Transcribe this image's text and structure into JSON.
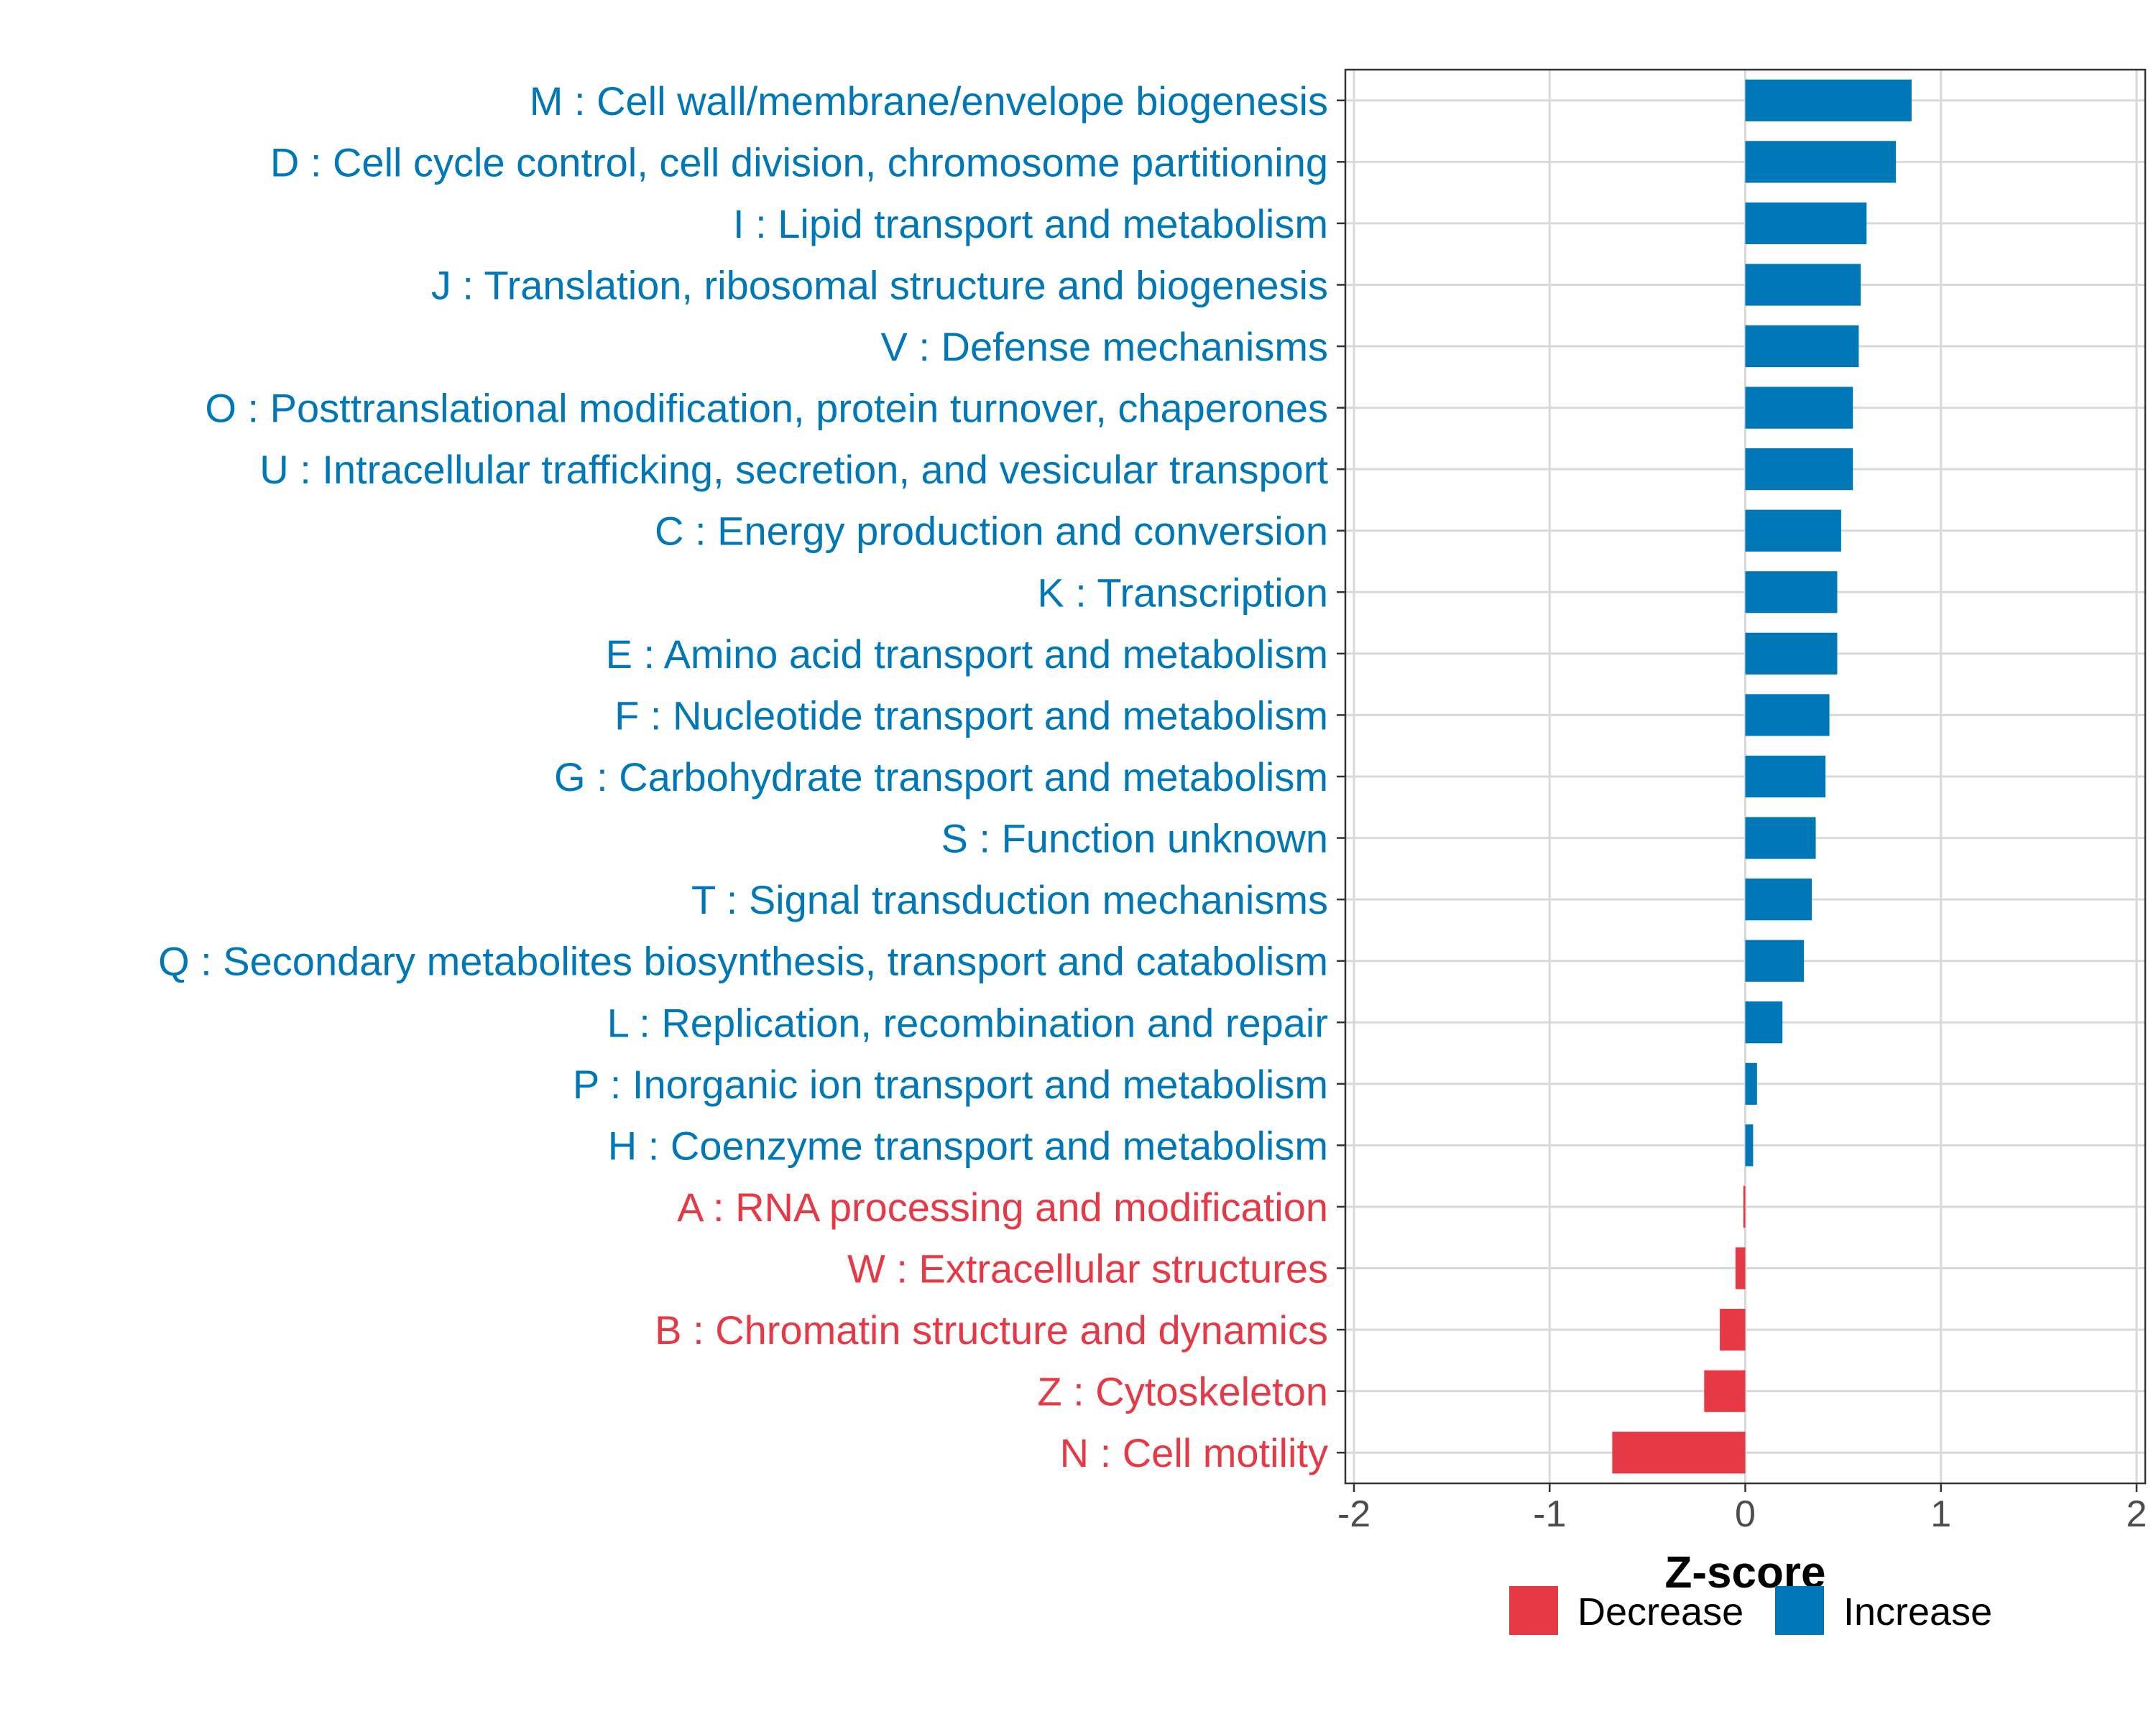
{
  "chart_data": {
    "type": "bar",
    "orientation": "horizontal",
    "title": "",
    "xlabel": "Z-score",
    "ylabel": "",
    "xlim": [
      -2,
      2
    ],
    "xticks": [
      "-2",
      "-1",
      "0",
      "1",
      "2"
    ],
    "grid": true,
    "legend_position": "bottom",
    "legend": [
      {
        "name": "Decrease",
        "color": "#e63946"
      },
      {
        "name": "Increase",
        "color": "#0077b6"
      }
    ],
    "categories": [
      "M : Cell wall/membrane/envelope biogenesis",
      "D : Cell cycle control, cell division, chromosome partitioning",
      "I : Lipid transport and metabolism",
      "J : Translation, ribosomal structure and biogenesis",
      "V : Defense mechanisms",
      "O : Posttranslational modification, protein turnover, chaperones",
      "U : Intracellular trafficking, secretion, and vesicular transport",
      "C : Energy production and conversion",
      "K : Transcription",
      "E : Amino acid transport and metabolism",
      "F : Nucleotide transport and metabolism",
      "G : Carbohydrate transport and metabolism",
      "S : Function unknown",
      "T : Signal transduction mechanisms",
      "Q : Secondary metabolites biosynthesis, transport and catabolism",
      "L : Replication, recombination and repair",
      "P : Inorganic ion transport and metabolism",
      "H : Coenzyme transport and metabolism",
      "A : RNA processing and modification",
      "W : Extracellular structures",
      "B : Chromatin structure and dynamics",
      "Z : Cytoskeleton",
      "N : Cell motility"
    ],
    "values": [
      0.85,
      0.77,
      0.62,
      0.59,
      0.58,
      0.55,
      0.55,
      0.49,
      0.47,
      0.47,
      0.43,
      0.41,
      0.36,
      0.34,
      0.3,
      0.19,
      0.06,
      0.04,
      -0.01,
      -0.05,
      -0.13,
      -0.21,
      -0.68
    ],
    "groups": [
      "Increase",
      "Increase",
      "Increase",
      "Increase",
      "Increase",
      "Increase",
      "Increase",
      "Increase",
      "Increase",
      "Increase",
      "Increase",
      "Increase",
      "Increase",
      "Increase",
      "Increase",
      "Increase",
      "Increase",
      "Increase",
      "Decrease",
      "Decrease",
      "Decrease",
      "Decrease",
      "Decrease"
    ]
  }
}
